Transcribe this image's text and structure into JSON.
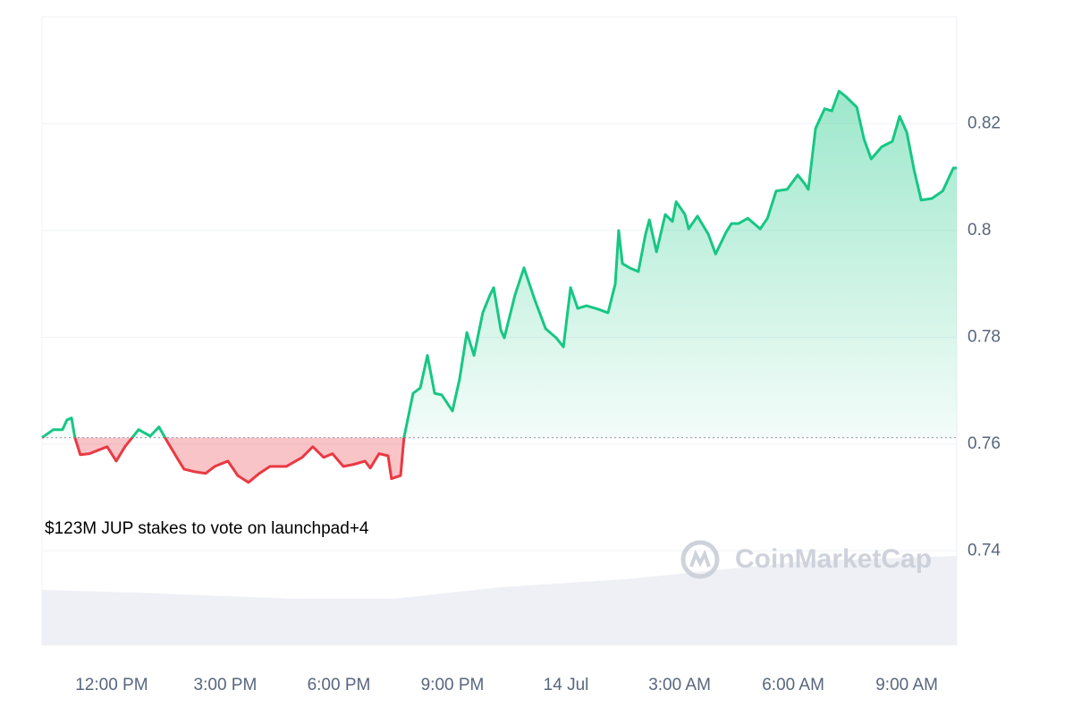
{
  "chart_data": {
    "type": "line",
    "annotation": "$123M JUP stakes to vote on launchpad+4",
    "watermark": "CoinMarketCap",
    "color": "#16c784",
    "below_color": "#ea3943",
    "baseline": 0.7612,
    "grid": true,
    "xlim": [
      10.16,
      34.32
    ],
    "xticks": [
      {
        "value": 12,
        "label": "12:00 PM"
      },
      {
        "value": 15,
        "label": "3:00 PM"
      },
      {
        "value": 18,
        "label": "6:00 PM"
      },
      {
        "value": 21,
        "label": "9:00 PM"
      },
      {
        "value": 24,
        "label": "14 Jul"
      },
      {
        "value": 27,
        "label": "3:00 AM"
      },
      {
        "value": 30,
        "label": "6:00 AM"
      },
      {
        "value": 33,
        "label": "9:00 AM"
      }
    ],
    "ylim": [
      0.7223,
      0.84
    ],
    "yticks": [
      0.74,
      0.76,
      0.78,
      0.8,
      0.82
    ],
    "x": [
      10.16,
      10.46,
      10.7,
      10.82,
      10.94,
      11.03,
      11.17,
      11.41,
      11.88,
      12.12,
      12.35,
      12.71,
      13.02,
      13.25,
      13.49,
      13.72,
      13.91,
      14.2,
      14.48,
      14.72,
      15.07,
      15.33,
      15.61,
      15.9,
      16.18,
      16.61,
      17.03,
      17.31,
      17.6,
      17.83,
      18.12,
      18.4,
      18.69,
      18.83,
      19.06,
      19.3,
      19.39,
      19.63,
      19.72,
      19.96,
      20.15,
      20.34,
      20.53,
      20.72,
      21.0,
      21.19,
      21.38,
      21.57,
      21.8,
      21.99,
      22.09,
      22.28,
      22.37,
      22.65,
      22.89,
      23.17,
      23.46,
      23.74,
      23.93,
      24.12,
      24.31,
      24.54,
      24.83,
      25.11,
      25.3,
      25.39,
      25.49,
      25.68,
      25.91,
      26.1,
      26.2,
      26.39,
      26.62,
      26.81,
      26.91,
      27.14,
      27.24,
      27.47,
      27.76,
      27.95,
      28.23,
      28.37,
      28.56,
      28.8,
      29.13,
      29.32,
      29.55,
      29.84,
      30.12,
      30.31,
      30.4,
      30.59,
      30.83,
      31.02,
      31.21,
      31.39,
      31.68,
      31.87,
      32.06,
      32.34,
      32.62,
      32.81,
      33.0,
      33.19,
      33.38,
      33.66,
      33.95,
      34.23,
      34.32
    ],
    "values": [
      0.7612,
      0.7627,
      0.7627,
      0.7645,
      0.7649,
      0.7612,
      0.758,
      0.7582,
      0.7595,
      0.7568,
      0.7595,
      0.7627,
      0.7615,
      0.7632,
      0.7602,
      0.7575,
      0.7553,
      0.7548,
      0.7545,
      0.7558,
      0.7568,
      0.7541,
      0.7528,
      0.7545,
      0.7558,
      0.7558,
      0.7575,
      0.7595,
      0.7575,
      0.7582,
      0.7558,
      0.7562,
      0.7568,
      0.7555,
      0.7582,
      0.7578,
      0.7535,
      0.7541,
      0.7612,
      0.7695,
      0.7705,
      0.7766,
      0.7695,
      0.7692,
      0.7662,
      0.7722,
      0.7809,
      0.7766,
      0.7846,
      0.7879,
      0.7893,
      0.7813,
      0.7799,
      0.7879,
      0.793,
      0.7871,
      0.7816,
      0.7799,
      0.7782,
      0.7893,
      0.7854,
      0.7859,
      0.7853,
      0.7846,
      0.79,
      0.8,
      0.7938,
      0.793,
      0.7923,
      0.7993,
      0.802,
      0.796,
      0.803,
      0.8017,
      0.8054,
      0.803,
      0.8003,
      0.8027,
      0.7993,
      0.7956,
      0.7997,
      0.8013,
      0.8013,
      0.8023,
      0.8003,
      0.8023,
      0.8074,
      0.8077,
      0.8104,
      0.8087,
      0.8077,
      0.8191,
      0.8228,
      0.8224,
      0.8261,
      0.8251,
      0.8231,
      0.8171,
      0.8134,
      0.8157,
      0.8167,
      0.8214,
      0.8184,
      0.8114,
      0.8057,
      0.806,
      0.8074,
      0.8117,
      0.8117
    ]
  }
}
